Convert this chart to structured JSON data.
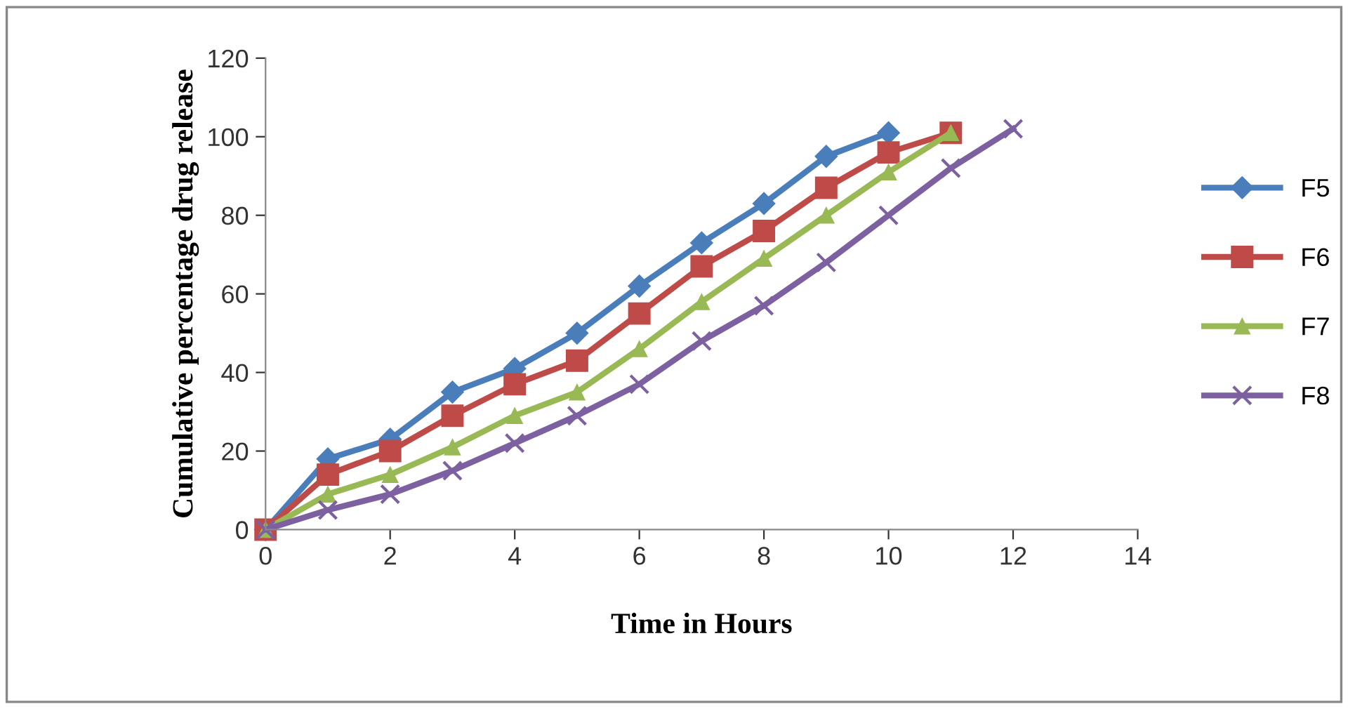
{
  "chart_data": {
    "type": "line",
    "xlabel": "Time in Hours",
    "ylabel": "Cumulative percentage drug release",
    "xlim": [
      0,
      14
    ],
    "xticks": [
      0,
      2,
      4,
      6,
      8,
      10,
      12,
      14
    ],
    "ylim": [
      0,
      120
    ],
    "yticks": [
      0,
      20,
      40,
      60,
      80,
      100,
      120
    ],
    "grid": false,
    "legend": "right",
    "series": [
      {
        "name": "F5",
        "color": "#4a7ebb",
        "marker": "diamond",
        "x": [
          0,
          1,
          2,
          3,
          4,
          5,
          6,
          7,
          8,
          9,
          10
        ],
        "values": [
          0,
          18,
          23,
          35,
          41,
          50,
          62,
          73,
          83,
          95,
          101
        ]
      },
      {
        "name": "F6",
        "color": "#be4b48",
        "marker": "square",
        "x": [
          0,
          1,
          2,
          3,
          4,
          5,
          6,
          7,
          8,
          9,
          10,
          11
        ],
        "values": [
          0,
          14,
          20,
          29,
          37,
          43,
          55,
          67,
          76,
          87,
          96,
          101
        ]
      },
      {
        "name": "F7",
        "color": "#98b954",
        "marker": "triangle",
        "x": [
          0,
          1,
          2,
          3,
          4,
          5,
          6,
          7,
          8,
          9,
          10,
          11
        ],
        "values": [
          0,
          9,
          14,
          21,
          29,
          35,
          46,
          58,
          69,
          80,
          91,
          101
        ]
      },
      {
        "name": "F8",
        "color": "#7d60a0",
        "marker": "cross",
        "x": [
          0,
          1,
          2,
          3,
          4,
          5,
          6,
          7,
          8,
          9,
          10,
          11,
          12
        ],
        "values": [
          0,
          5,
          9,
          15,
          22,
          29,
          37,
          48,
          57,
          68,
          80,
          92,
          102
        ]
      }
    ]
  }
}
